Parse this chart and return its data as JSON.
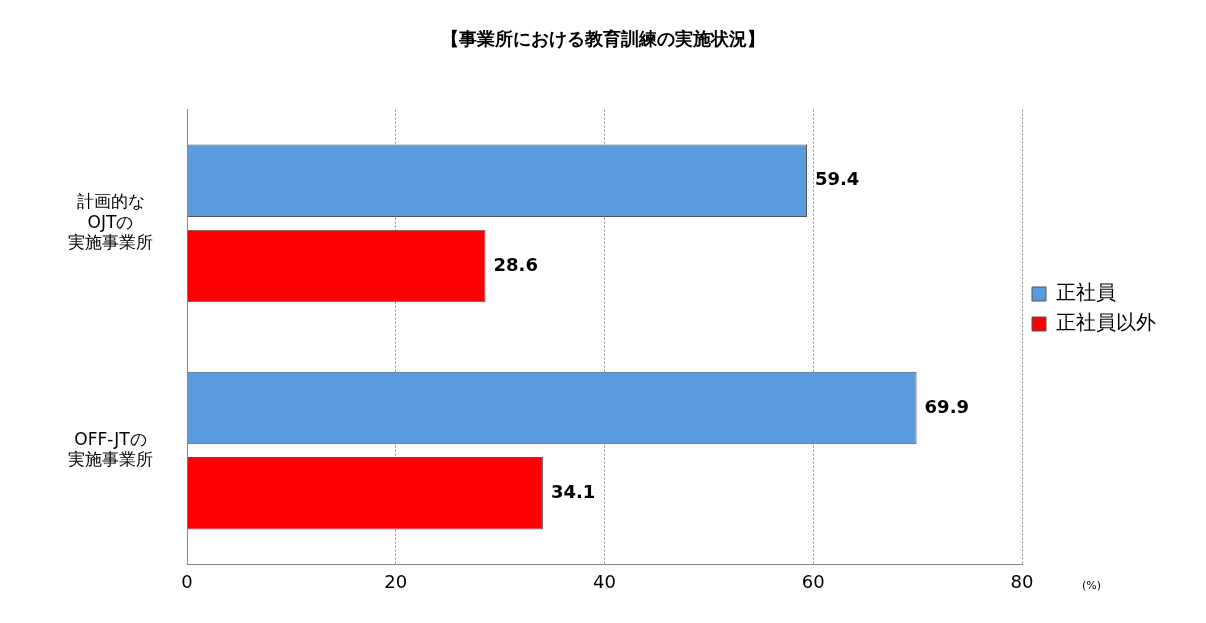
{
  "chart_data": {
    "type": "bar",
    "orientation": "horizontal",
    "title": "【事業所における教育訓練の実施状況】",
    "categories": [
      "計画的なOJTの実施事業所",
      "OFF-JTの実施事業所"
    ],
    "series": [
      {
        "name": "正社員",
        "color": "#5b9be0",
        "values": [
          59.4,
          69.9
        ]
      },
      {
        "name": "正社員以外",
        "color": "#ff0000",
        "values": [
          28.6,
          34.1
        ]
      }
    ],
    "xlim": [
      0,
      80
    ],
    "xticks": [
      0,
      20,
      40,
      60,
      80
    ],
    "xlabel": "(%)",
    "grid": "x",
    "legend": "right",
    "data_labels": true
  }
}
